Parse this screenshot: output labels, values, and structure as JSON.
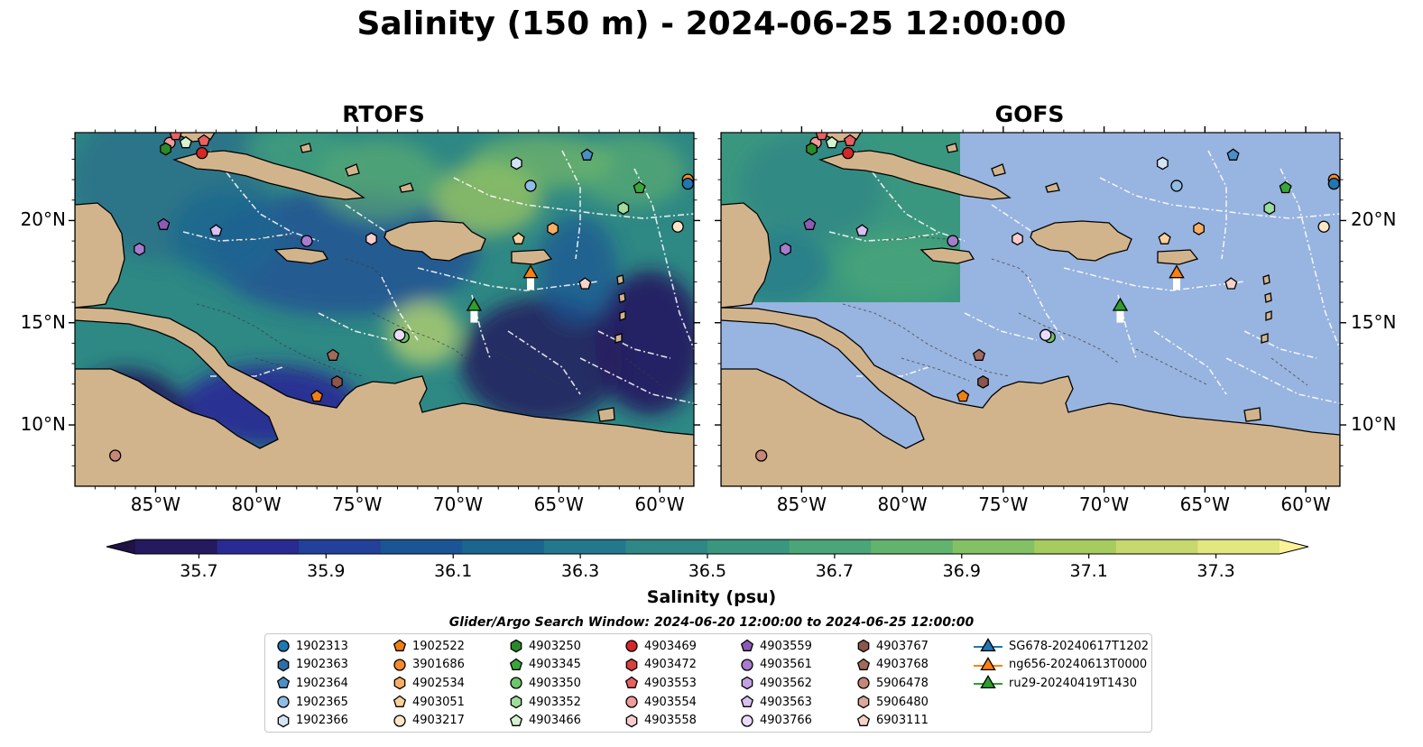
{
  "title": "Salinity (150 m) - 2024-06-25 12:00:00",
  "panels": [
    {
      "name": "RTOFS"
    },
    {
      "name": "GOFS"
    }
  ],
  "axes": {
    "lon_ticks": [
      "85°W",
      "80°W",
      "75°W",
      "70°W",
      "65°W",
      "60°W"
    ],
    "lat_ticks": [
      "20°N",
      "15°N",
      "10°N"
    ],
    "lon_range": [
      -89,
      -58.3
    ],
    "lat_range": [
      7,
      24.3
    ]
  },
  "colorbar": {
    "label": "Salinity (psu)",
    "min": 35.6,
    "max": 37.4,
    "ticks": [
      "35.7",
      "35.9",
      "36.1",
      "36.3",
      "36.5",
      "36.7",
      "36.9",
      "37.1",
      "37.3"
    ],
    "colors": [
      "#251a5f",
      "#2a2a93",
      "#23409b",
      "#1a5595",
      "#1a6690",
      "#22788d",
      "#2f8786",
      "#3a977f",
      "#4aa579",
      "#62b36e",
      "#84c064",
      "#a6cb5e",
      "#c6d86e",
      "#e3e77f"
    ],
    "extend": "both"
  },
  "map_colors": {
    "land": "#d2b48c",
    "ocean_mask": "#98b4e0"
  },
  "search_window": "Glider/Argo Search Window: 2024-06-20 12:00:00 to 2024-06-25 12:00:00",
  "legend": [
    {
      "label": "1902313",
      "shape": "circle",
      "color": "#1f77b4"
    },
    {
      "label": "1902363",
      "shape": "hexagon",
      "color": "#2c6fa8"
    },
    {
      "label": "1902364",
      "shape": "pentagon",
      "color": "#4b8fc7"
    },
    {
      "label": "1902365",
      "shape": "circle",
      "color": "#8fbde6"
    },
    {
      "label": "1902366",
      "shape": "hexagon",
      "color": "#d4e4f5"
    },
    {
      "label": "1902522",
      "shape": "pentagon",
      "color": "#f07f12"
    },
    {
      "label": "3901686",
      "shape": "circle",
      "color": "#f68a2c"
    },
    {
      "label": "4902534",
      "shape": "hexagon",
      "color": "#f9ae63"
    },
    {
      "label": "4903051",
      "shape": "pentagon",
      "color": "#fcd09a"
    },
    {
      "label": "4903217",
      "shape": "circle",
      "color": "#fde5c8"
    },
    {
      "label": "4903250",
      "shape": "hexagon",
      "color": "#2a8a2a"
    },
    {
      "label": "4903345",
      "shape": "pentagon",
      "color": "#3aa53a"
    },
    {
      "label": "4903350",
      "shape": "circle",
      "color": "#6cc66c"
    },
    {
      "label": "4903352",
      "shape": "hexagon",
      "color": "#9ddc9d"
    },
    {
      "label": "4903466",
      "shape": "pentagon",
      "color": "#d3f2cf"
    },
    {
      "label": "4903469",
      "shape": "circle",
      "color": "#d62728"
    },
    {
      "label": "4903472",
      "shape": "hexagon",
      "color": "#d94040"
    },
    {
      "label": "4903553",
      "shape": "pentagon",
      "color": "#e86060"
    },
    {
      "label": "4903554",
      "shape": "circle",
      "color": "#f29b9b"
    },
    {
      "label": "4903558",
      "shape": "hexagon",
      "color": "#f8cccc"
    },
    {
      "label": "4903559",
      "shape": "pentagon",
      "color": "#8c5bb5"
    },
    {
      "label": "4903561",
      "shape": "circle",
      "color": "#a77cce"
    },
    {
      "label": "4903562",
      "shape": "hexagon",
      "color": "#c2a2e2"
    },
    {
      "label": "4903563",
      "shape": "pentagon",
      "color": "#d8c0f0"
    },
    {
      "label": "4903766",
      "shape": "circle",
      "color": "#ecdcfb"
    },
    {
      "label": "4903767",
      "shape": "hexagon",
      "color": "#8c564b"
    },
    {
      "label": "4903768",
      "shape": "pentagon",
      "color": "#a06a5c"
    },
    {
      "label": "5906478",
      "shape": "circle",
      "color": "#c4877a"
    },
    {
      "label": "5906480",
      "shape": "hexagon",
      "color": "#dba89c"
    },
    {
      "label": "6903111",
      "shape": "pentagon",
      "color": "#f6d2c9"
    },
    {
      "label": "SG678-20240617T1202",
      "shape": "triangle",
      "color": "#1f77b4"
    },
    {
      "label": "ng656-20240613T0000",
      "shape": "triangle",
      "color": "#ff7f0e"
    },
    {
      "label": "ru29-20240419T1430",
      "shape": "triangle",
      "color": "#2ca02c"
    }
  ],
  "floats": [
    {
      "lon": -84.3,
      "lat": 23.8,
      "shape": "circle",
      "color": "#f29b9b"
    },
    {
      "lon": -84.0,
      "lat": 24.2,
      "shape": "pentagon",
      "color": "#e86060"
    },
    {
      "lon": -84.5,
      "lat": 23.5,
      "shape": "hexagon",
      "color": "#2a8a2a"
    },
    {
      "lon": -83.5,
      "lat": 23.8,
      "shape": "pentagon",
      "color": "#d3f2cf"
    },
    {
      "lon": -82.6,
      "lat": 23.9,
      "shape": "pentagon",
      "color": "#e86060"
    },
    {
      "lon": -82.7,
      "lat": 23.3,
      "shape": "circle",
      "color": "#d62728"
    },
    {
      "lon": -84.6,
      "lat": 19.8,
      "shape": "pentagon",
      "color": "#8c5bb5"
    },
    {
      "lon": -82.0,
      "lat": 19.5,
      "shape": "pentagon",
      "color": "#d8c0f0"
    },
    {
      "lon": -85.8,
      "lat": 18.6,
      "shape": "hexagon",
      "color": "#a77cce"
    },
    {
      "lon": -77.5,
      "lat": 19.0,
      "shape": "circle",
      "color": "#a77cce"
    },
    {
      "lon": -74.3,
      "lat": 19.1,
      "shape": "hexagon",
      "color": "#f8cccc"
    },
    {
      "lon": -67.1,
      "lat": 22.8,
      "shape": "hexagon",
      "color": "#d4e4f5"
    },
    {
      "lon": -66.4,
      "lat": 21.7,
      "shape": "circle",
      "color": "#8fbde6"
    },
    {
      "lon": -63.6,
      "lat": 23.2,
      "shape": "pentagon",
      "color": "#4b8fc7"
    },
    {
      "lon": -61.0,
      "lat": 21.6,
      "shape": "pentagon",
      "color": "#3aa53a"
    },
    {
      "lon": -61.8,
      "lat": 20.6,
      "shape": "hexagon",
      "color": "#9ddc9d"
    },
    {
      "lon": -58.6,
      "lat": 22.0,
      "shape": "circle",
      "color": "#f68a2c"
    },
    {
      "lon": -58.6,
      "lat": 21.8,
      "shape": "circle",
      "color": "#1f77b4"
    },
    {
      "lon": -59.1,
      "lat": 19.7,
      "shape": "circle",
      "color": "#fde5c8"
    },
    {
      "lon": -65.3,
      "lat": 19.6,
      "shape": "hexagon",
      "color": "#f9ae63"
    },
    {
      "lon": -67.0,
      "lat": 19.1,
      "shape": "pentagon",
      "color": "#fcd09a"
    },
    {
      "lon": -63.7,
      "lat": 16.9,
      "shape": "pentagon",
      "color": "#f6d2c9"
    },
    {
      "lon": -72.7,
      "lat": 14.3,
      "shape": "circle",
      "color": "#6cc66c"
    },
    {
      "lon": -72.9,
      "lat": 14.4,
      "shape": "circle",
      "color": "#ecdcfb"
    },
    {
      "lon": -76.2,
      "lat": 13.4,
      "shape": "pentagon",
      "color": "#a06a5c"
    },
    {
      "lon": -76.0,
      "lat": 12.1,
      "shape": "hexagon",
      "color": "#8c564b"
    },
    {
      "lon": -77.0,
      "lat": 11.4,
      "shape": "pentagon",
      "color": "#f07f12"
    },
    {
      "lon": -87.0,
      "lat": 8.5,
      "shape": "circle",
      "color": "#c4877a"
    }
  ],
  "gliders": [
    {
      "lon": -66.4,
      "lat": 17.4,
      "color": "#ff7f0e"
    },
    {
      "lon": -69.2,
      "lat": 15.8,
      "color": "#2ca02c"
    }
  ]
}
